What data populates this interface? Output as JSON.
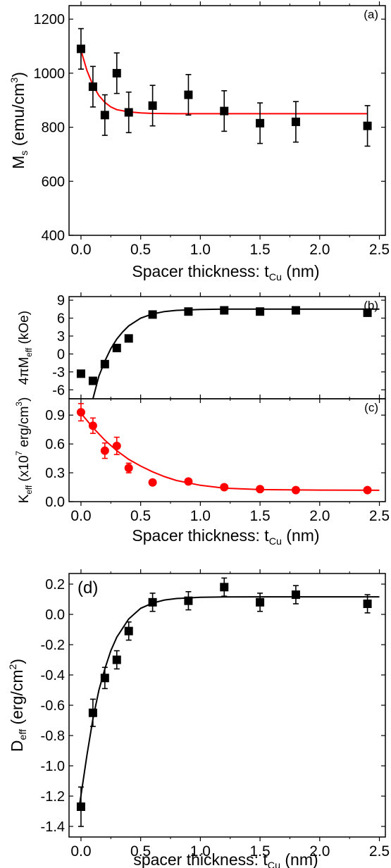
{
  "chart_data": [
    {
      "id": "a",
      "type": "scatter",
      "panel_label": "(a)",
      "xlabel": "Spacer thickness: t",
      "xlabel_sub": "Cu",
      "xlabel_tail": " (nm)",
      "ylabel": "M",
      "ylabel_sub": "s",
      "ylabel_tail": " (emu/cm",
      "ylabel_sup": "3",
      "ylabel_end": ")",
      "xlim": [
        -0.1,
        2.55
      ],
      "ylim": [
        400,
        1250
      ],
      "xticks": [
        0.0,
        0.5,
        1.0,
        1.5,
        2.0,
        2.5
      ],
      "xtick_labels": [
        "0.0",
        "0.5",
        "1.0",
        "1.5",
        "2.0",
        "2.5"
      ],
      "yticks": [
        400,
        600,
        800,
        1000,
        1200
      ],
      "ytick_labels": [
        "400",
        "600",
        "800",
        "1000",
        "1200"
      ],
      "series": [
        {
          "marker": "square",
          "color": "#000000",
          "x": [
            0.0,
            0.1,
            0.2,
            0.3,
            0.4,
            0.6,
            0.9,
            1.2,
            1.5,
            1.8,
            2.4
          ],
          "y": [
            1090,
            950,
            845,
            1000,
            855,
            880,
            920,
            860,
            815,
            820,
            805
          ],
          "yerr": [
            75,
            75,
            75,
            75,
            75,
            75,
            75,
            75,
            75,
            75,
            75
          ]
        }
      ],
      "fit": {
        "color": "#ff0000",
        "x": [
          0.0,
          0.05,
          0.1,
          0.15,
          0.2,
          0.25,
          0.3,
          0.4,
          0.5,
          0.6,
          0.8,
          1.0,
          1.5,
          2.0,
          2.4
        ],
        "y": [
          1085,
          1010,
          955,
          917,
          892,
          875,
          865,
          857,
          853,
          851,
          850,
          850,
          850,
          850,
          850
        ]
      }
    },
    {
      "id": "b",
      "type": "scatter",
      "panel_label": "(b)",
      "ylabel": "4πM",
      "ylabel_sub": "eff",
      "ylabel_tail": " (kOe)",
      "xlim": [
        -0.1,
        2.55
      ],
      "ylim": [
        -7.5,
        9.6
      ],
      "xticks": [
        0.0,
        0.5,
        1.0,
        1.5,
        2.0,
        2.5
      ],
      "yticks": [
        -6,
        -3,
        0,
        3,
        6,
        9
      ],
      "ytick_labels": [
        "-6",
        "-3",
        "0",
        "3",
        "6",
        "9"
      ],
      "series": [
        {
          "marker": "square",
          "color": "#000000",
          "x": [
            0.0,
            0.1,
            0.2,
            0.3,
            0.4,
            0.6,
            0.9,
            1.2,
            1.5,
            1.8,
            2.4
          ],
          "y": [
            -3.3,
            -4.5,
            -1.7,
            1.0,
            2.6,
            6.6,
            7.1,
            7.3,
            7.1,
            7.3,
            6.9
          ]
        }
      ],
      "fit": {
        "color": "#000000",
        "x": [
          0.1,
          0.15,
          0.2,
          0.25,
          0.3,
          0.35,
          0.4,
          0.5,
          0.6,
          0.7,
          0.8,
          1.0,
          1.2,
          1.5,
          2.0,
          2.5
        ],
        "y": [
          -7.5,
          -3.7,
          -1.2,
          0.9,
          2.5,
          3.7,
          4.7,
          6.0,
          6.7,
          7.1,
          7.3,
          7.45,
          7.5,
          7.5,
          7.5,
          7.5
        ]
      }
    },
    {
      "id": "c",
      "type": "scatter",
      "panel_label": "(c)",
      "xlabel": "Spacer thickness: t",
      "xlabel_sub": "Cu",
      "xlabel_tail": " (nm)",
      "ylabel": "K",
      "ylabel_sub": "eff",
      "ylabel_tail": " (x10",
      "ylabel_sup": "7",
      "ylabel_end": " erg/cm",
      "ylabel_sup2": "3",
      "ylabel_end2": ")",
      "xlim": [
        -0.1,
        2.55
      ],
      "ylim": [
        0.0,
        1.07
      ],
      "xticks": [
        0.0,
        0.5,
        1.0,
        1.5,
        2.0,
        2.5
      ],
      "xtick_labels": [
        "0.0",
        "0.5",
        "1.0",
        "1.5",
        "2.0",
        "2.5"
      ],
      "yticks": [
        0.0,
        0.3,
        0.6,
        0.9
      ],
      "ytick_labels": [
        "0.0",
        "0.3",
        "0.6",
        "0.9"
      ],
      "series": [
        {
          "marker": "circle",
          "color": "#ff0000",
          "x": [
            0.0,
            0.1,
            0.2,
            0.3,
            0.4,
            0.6,
            0.9,
            1.2,
            1.5,
            1.8,
            2.4
          ],
          "y": [
            0.93,
            0.79,
            0.53,
            0.58,
            0.35,
            0.2,
            0.21,
            0.15,
            0.13,
            0.12,
            0.12
          ],
          "yerr": [
            0.09,
            0.08,
            0.08,
            0.09,
            0.05,
            0,
            0,
            0,
            0,
            0,
            0
          ]
        }
      ],
      "fit": {
        "color": "#ff0000",
        "x": [
          0.0,
          0.1,
          0.2,
          0.3,
          0.4,
          0.5,
          0.6,
          0.7,
          0.8,
          1.0,
          1.2,
          1.5,
          2.0,
          2.5
        ],
        "y": [
          0.92,
          0.77,
          0.64,
          0.53,
          0.44,
          0.37,
          0.31,
          0.26,
          0.22,
          0.17,
          0.14,
          0.125,
          0.12,
          0.118
        ]
      }
    },
    {
      "id": "d",
      "type": "scatter",
      "panel_label": "(d)",
      "xlabel": "spacer thickness: t",
      "xlabel_sub": "Cu",
      "xlabel_tail": " (nm)",
      "ylabel": "D",
      "ylabel_sub": "eff",
      "ylabel_tail": " (erg/cm",
      "ylabel_sup": "2",
      "ylabel_end": ")",
      "xlim": [
        -0.1,
        2.55
      ],
      "ylim": [
        -1.47,
        0.27
      ],
      "xticks": [
        0.0,
        0.5,
        1.0,
        1.5,
        2.0,
        2.5
      ],
      "xtick_labels": [
        "0.0",
        "0.5",
        "1.0",
        "1.5",
        "2.0",
        "2.5"
      ],
      "yticks": [
        -1.4,
        -1.2,
        -1.0,
        -0.8,
        -0.6,
        -0.4,
        -0.2,
        0.0,
        0.2
      ],
      "ytick_labels": [
        "-1.4",
        "-1.2",
        "-1.0",
        "-0.8",
        "-0.6",
        "-0.4",
        "-0.2",
        "0.0",
        "0.2"
      ],
      "series": [
        {
          "marker": "square",
          "color": "#000000",
          "x": [
            0.0,
            0.1,
            0.2,
            0.3,
            0.4,
            0.6,
            0.9,
            1.2,
            1.5,
            1.8,
            2.4
          ],
          "y": [
            -1.27,
            -0.65,
            -0.42,
            -0.3,
            -0.11,
            0.08,
            0.09,
            0.18,
            0.08,
            0.13,
            0.07
          ],
          "yerr": [
            0.13,
            0.09,
            0.07,
            0.06,
            0.06,
            0.06,
            0.06,
            0.06,
            0.06,
            0.06,
            0.06
          ]
        }
      ],
      "fit": {
        "color": "#000000",
        "x": [
          -0.01,
          0.05,
          0.1,
          0.15,
          0.2,
          0.25,
          0.3,
          0.4,
          0.5,
          0.6,
          0.7,
          0.8,
          1.0,
          1.2,
          1.5,
          2.0,
          2.5
        ],
        "y": [
          -1.25,
          -0.93,
          -0.69,
          -0.5,
          -0.36,
          -0.24,
          -0.15,
          -0.03,
          0.04,
          0.075,
          0.095,
          0.105,
          0.113,
          0.115,
          0.116,
          0.116,
          0.116
        ]
      }
    }
  ]
}
